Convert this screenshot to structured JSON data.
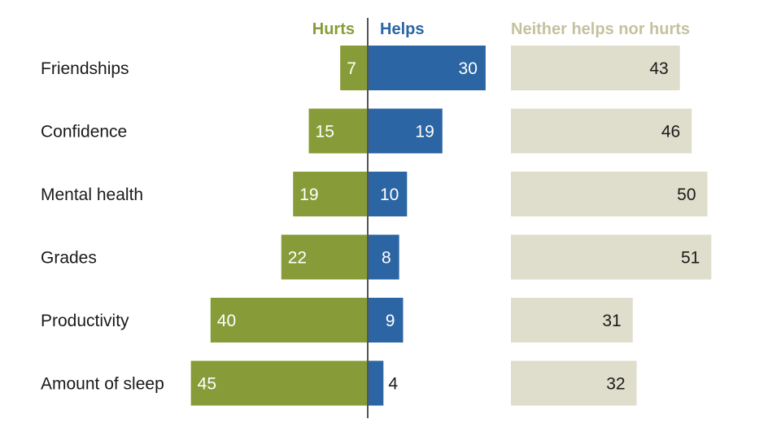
{
  "chart_data": {
    "type": "bar",
    "categories": [
      "Friendships",
      "Confidence",
      "Mental health",
      "Grades",
      "Productivity",
      "Amount of sleep"
    ],
    "series": [
      {
        "name": "Hurts",
        "values": [
          7,
          15,
          19,
          22,
          40,
          45
        ],
        "color": "#879c38"
      },
      {
        "name": "Helps",
        "values": [
          30,
          19,
          10,
          8,
          9,
          4
        ],
        "color": "#2b65a3"
      },
      {
        "name": "Neither helps nor hurts",
        "values": [
          43,
          46,
          50,
          51,
          31,
          32
        ],
        "color": "#dfddcb"
      }
    ],
    "legend": {
      "hurts_label": "Hurts",
      "helps_label": "Helps",
      "neither_label": "Neither helps nor hurts",
      "neither_label_color": "#c4c29e"
    },
    "value_text_light": "#ffffff",
    "value_text_dark": "#1a1a1a",
    "axis_color": "#555555"
  }
}
